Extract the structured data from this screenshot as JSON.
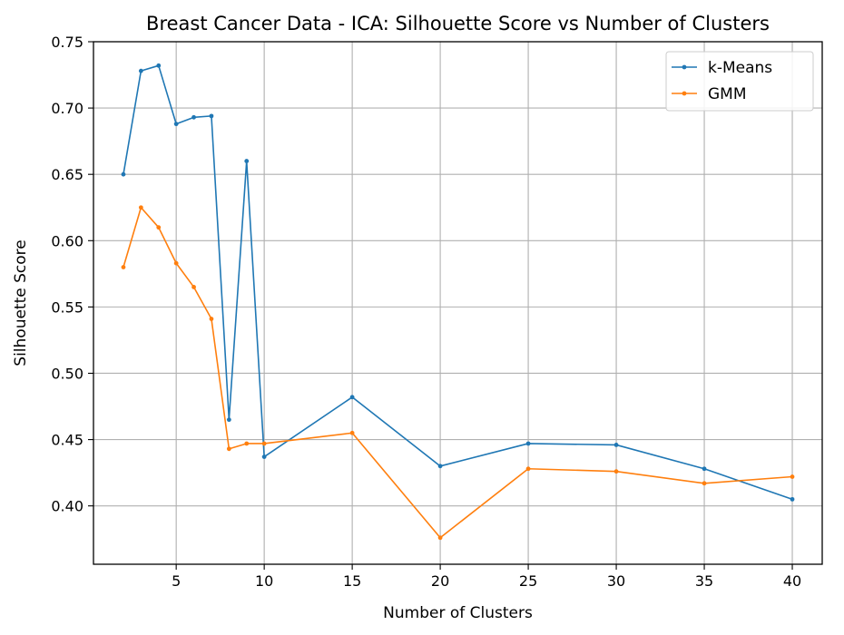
{
  "chart_data": {
    "type": "line",
    "title": "Breast Cancer Data - ICA: Silhouette Score vs Number of Clusters",
    "xlabel": "Number of Clusters",
    "ylabel": "Silhouette Score",
    "x": [
      2,
      3,
      4,
      5,
      6,
      7,
      8,
      9,
      10,
      15,
      20,
      25,
      30,
      35,
      40
    ],
    "xlim": [
      0.3,
      41.7
    ],
    "ylim": [
      0.356,
      0.75
    ],
    "xticks": [
      5,
      10,
      15,
      20,
      25,
      30,
      35,
      40
    ],
    "yticks": [
      0.4,
      0.45,
      0.5,
      0.55,
      0.6,
      0.65,
      0.7,
      0.75
    ],
    "xtick_labels": [
      "5",
      "10",
      "15",
      "20",
      "25",
      "30",
      "35",
      "40"
    ],
    "ytick_labels": [
      "0.40",
      "0.45",
      "0.50",
      "0.55",
      "0.60",
      "0.65",
      "0.70",
      "0.75"
    ],
    "grid": true,
    "legend_position": "top-right",
    "series": [
      {
        "name": "k-Means",
        "color": "#1f77b4",
        "values": [
          0.65,
          0.728,
          0.732,
          0.688,
          0.693,
          0.694,
          0.465,
          0.66,
          0.437,
          0.482,
          0.43,
          0.447,
          0.446,
          0.428,
          0.405
        ]
      },
      {
        "name": "GMM",
        "color": "#ff7f0e",
        "values": [
          0.58,
          0.625,
          0.61,
          0.583,
          0.565,
          0.541,
          0.443,
          0.447,
          0.447,
          0.455,
          0.376,
          0.428,
          0.426,
          0.417,
          0.422
        ]
      }
    ]
  }
}
